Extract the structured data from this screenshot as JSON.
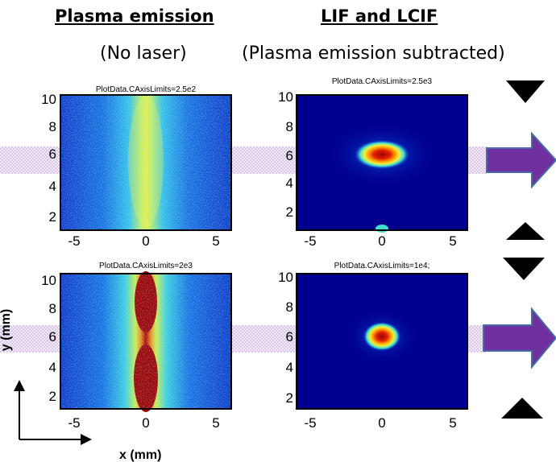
{
  "headers": {
    "left_title": "Plasma emission",
    "right_title": "LIF and LCIF",
    "left_subtitle": "(No laser)",
    "right_subtitle": "(Plasma emission subtracted)"
  },
  "axes": {
    "ylabel": "y (mm)",
    "xlabel": "x (mm)",
    "xticks": [
      "-5",
      "0",
      "5"
    ],
    "yticks": [
      "2",
      "4",
      "6",
      "8",
      "10"
    ]
  },
  "panels": [
    {
      "caption": "PlotData.CAxisLimits=2.5e2",
      "kind": "plasma",
      "intensity": "moderate"
    },
    {
      "caption": "PlotData.CAxisLimits=2.5e3",
      "kind": "lif",
      "intensity": "large-spot"
    },
    {
      "caption": "PlotData.CAxisLimits=2e3",
      "kind": "plasma",
      "intensity": "strong"
    },
    {
      "caption": "PlotData.CAxisLimits=1e4;",
      "kind": "lif",
      "intensity": "small-spot"
    }
  ],
  "colors": {
    "arrow": "#7030a0",
    "arrow_edge": "#4a6aa8",
    "band": "#c4a8e0",
    "triangle": "#000000"
  },
  "icons": [
    "down-triangle-icon",
    "up-triangle-icon",
    "right-arrow-icon",
    "corner-axes-icon"
  ]
}
